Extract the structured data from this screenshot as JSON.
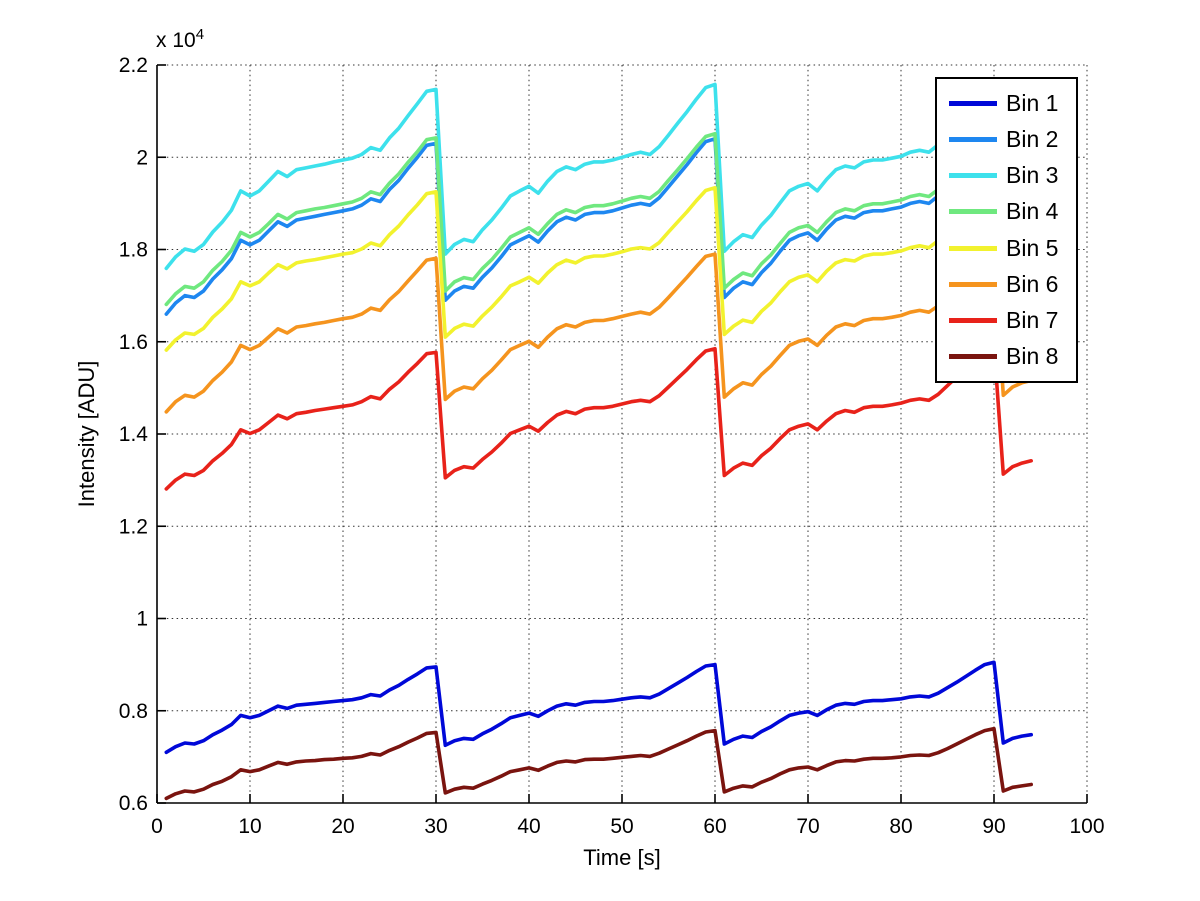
{
  "figure": {
    "background": "#ffffff",
    "exponent_label": {
      "base": "x 10",
      "exp": "4"
    }
  },
  "chart_data": {
    "type": "line",
    "title": "",
    "xlabel": "Time [s]",
    "ylabel": "Intensity [ADU]",
    "xlim": [
      0,
      100
    ],
    "ylim": [
      6000,
      22000
    ],
    "grid": true,
    "legend_position": "northeast",
    "xticks": [
      0,
      10,
      20,
      30,
      40,
      50,
      60,
      70,
      80,
      90,
      100
    ],
    "xtick_labels": [
      "0",
      "10",
      "20",
      "30",
      "40",
      "50",
      "60",
      "70",
      "80",
      "90",
      "100"
    ],
    "yticks": [
      6000,
      8000,
      10000,
      12000,
      14000,
      16000,
      18000,
      20000,
      22000
    ],
    "ytick_labels": [
      "0.6",
      "0.8",
      "1",
      "1.2",
      "1.4",
      "1.6",
      "1.8",
      "2",
      "2.2"
    ],
    "grid_color": "#333333",
    "axis_color": "#000000",
    "x": [
      1,
      2,
      3,
      4,
      5,
      6,
      7,
      8,
      9,
      10,
      11,
      12,
      13,
      14,
      15,
      16,
      17,
      18,
      19,
      20,
      21,
      22,
      23,
      24,
      25,
      26,
      27,
      28,
      29,
      30,
      31,
      32,
      33,
      34,
      35,
      36,
      37,
      38,
      39,
      40,
      41,
      42,
      43,
      44,
      45,
      46,
      47,
      48,
      49,
      50,
      51,
      52,
      53,
      54,
      55,
      56,
      57,
      58,
      59,
      60,
      61,
      62,
      63,
      64,
      65,
      66,
      67,
      68,
      69,
      70,
      71,
      72,
      73,
      74,
      75,
      76,
      77,
      78,
      79,
      80,
      81,
      82,
      83,
      84,
      85,
      86,
      87,
      88,
      89,
      90,
      91,
      92,
      93,
      94
    ],
    "series": [
      {
        "name": "Bin 1",
        "color": "#0008D8",
        "values": [
          7100,
          7220,
          7300,
          7280,
          7350,
          7480,
          7580,
          7700,
          7900,
          7850,
          7900,
          8000,
          8100,
          8050,
          8120,
          8140,
          8160,
          8180,
          8200,
          8220,
          8240,
          8280,
          8350,
          8320,
          8450,
          8550,
          8680,
          8800,
          8930,
          8950,
          7250,
          7350,
          7400,
          7380,
          7500,
          7600,
          7720,
          7850,
          7900,
          7950,
          7880,
          8000,
          8100,
          8150,
          8120,
          8180,
          8200,
          8200,
          8220,
          8250,
          8280,
          8300,
          8280,
          8360,
          8480,
          8600,
          8720,
          8850,
          8970,
          9000,
          7280,
          7380,
          7450,
          7420,
          7550,
          7650,
          7780,
          7900,
          7950,
          7980,
          7900,
          8020,
          8120,
          8160,
          8140,
          8200,
          8220,
          8220,
          8240,
          8260,
          8300,
          8320,
          8300,
          8380,
          8500,
          8620,
          8750,
          8880,
          9000,
          9050,
          7300,
          7400,
          7450,
          7480
        ]
      },
      {
        "name": "Bin 2",
        "color": "#1E87F0",
        "values": [
          16600,
          16840,
          17000,
          16960,
          17100,
          17360,
          17560,
          17800,
          18200,
          18100,
          18200,
          18400,
          18600,
          18500,
          18640,
          18680,
          18720,
          18760,
          18800,
          18840,
          18880,
          18960,
          19100,
          19040,
          19300,
          19500,
          19760,
          20000,
          20260,
          20300,
          16900,
          17100,
          17200,
          17160,
          17400,
          17600,
          17840,
          18100,
          18200,
          18300,
          18160,
          18400,
          18600,
          18700,
          18640,
          18760,
          18800,
          18800,
          18840,
          18900,
          18960,
          19000,
          18960,
          19120,
          19360,
          19600,
          19840,
          20100,
          20340,
          20400,
          16960,
          17160,
          17300,
          17240,
          17500,
          17700,
          17960,
          18200,
          18300,
          18360,
          18200,
          18440,
          18640,
          18720,
          18680,
          18800,
          18840,
          18840,
          18880,
          18920,
          19000,
          19040,
          19000,
          19160,
          19400,
          19640,
          19900,
          20160,
          20400,
          20500,
          17000,
          17200,
          17300,
          17360
        ]
      },
      {
        "name": "Bin 3",
        "color": "#3DE1EC",
        "values": [
          17590,
          17840,
          18010,
          17960,
          18110,
          18380,
          18590,
          18850,
          19270,
          19160,
          19270,
          19480,
          19690,
          19580,
          19730,
          19770,
          19810,
          19850,
          19900,
          19940,
          19980,
          20060,
          20210,
          20150,
          20420,
          20630,
          20900,
          21160,
          21430,
          21470,
          17900,
          18110,
          18220,
          18170,
          18430,
          18640,
          18890,
          19160,
          19270,
          19370,
          19220,
          19480,
          19690,
          19790,
          19730,
          19850,
          19900,
          19900,
          19940,
          20000,
          20060,
          20110,
          20060,
          20230,
          20480,
          20740,
          20990,
          21260,
          21510,
          21580,
          17960,
          18170,
          18320,
          18260,
          18530,
          18740,
          19010,
          19270,
          19370,
          19430,
          19270,
          19520,
          19730,
          19810,
          19770,
          19900,
          19940,
          19940,
          19980,
          20020,
          20110,
          20150,
          20110,
          20270,
          20530,
          20780,
          21050,
          21320,
          21580,
          21680,
          18010,
          18220,
          18320,
          18380
        ]
      },
      {
        "name": "Bin 4",
        "color": "#6FE87F",
        "values": [
          16810,
          17040,
          17200,
          17160,
          17300,
          17550,
          17740,
          17980,
          18370,
          18270,
          18370,
          18560,
          18760,
          18660,
          18800,
          18840,
          18880,
          18910,
          18950,
          18990,
          19030,
          19110,
          19250,
          19190,
          19440,
          19640,
          19890,
          20120,
          20380,
          20420,
          17100,
          17300,
          17390,
          17350,
          17590,
          17780,
          18020,
          18270,
          18370,
          18470,
          18330,
          18560,
          18760,
          18860,
          18800,
          18910,
          18950,
          18950,
          18990,
          19050,
          19110,
          19150,
          19110,
          19260,
          19500,
          19730,
          19970,
          20220,
          20450,
          20510,
          17160,
          17350,
          17490,
          17430,
          17690,
          17880,
          18130,
          18370,
          18470,
          18520,
          18370,
          18600,
          18800,
          18880,
          18840,
          18950,
          18990,
          18990,
          19030,
          19070,
          19150,
          19190,
          19150,
          19300,
          19540,
          19770,
          20030,
          20280,
          20510,
          20610,
          17200,
          17390,
          17490,
          17550
        ]
      },
      {
        "name": "Bin 5",
        "color": "#F2F22E",
        "values": [
          15820,
          16040,
          16190,
          16160,
          16290,
          16530,
          16710,
          16930,
          17300,
          17210,
          17300,
          17490,
          17670,
          17580,
          17710,
          17750,
          17780,
          17820,
          17860,
          17900,
          17930,
          18010,
          18140,
          18080,
          18320,
          18510,
          18750,
          18970,
          19210,
          19250,
          16100,
          16290,
          16380,
          16340,
          16560,
          16750,
          16970,
          17210,
          17300,
          17400,
          17270,
          17490,
          17670,
          17770,
          17710,
          17820,
          17860,
          17860,
          17900,
          17950,
          18010,
          18040,
          18010,
          18150,
          18380,
          18600,
          18820,
          19060,
          19280,
          19340,
          16160,
          16340,
          16470,
          16420,
          16660,
          16840,
          17080,
          17300,
          17400,
          17450,
          17300,
          17530,
          17710,
          17780,
          17750,
          17860,
          17900,
          17900,
          17930,
          17970,
          18040,
          18080,
          18040,
          18190,
          18410,
          18640,
          18880,
          19120,
          19340,
          19430,
          16190,
          16380,
          16470,
          16530
        ]
      },
      {
        "name": "Bin 6",
        "color": "#F5941E",
        "values": [
          14480,
          14700,
          14840,
          14800,
          14930,
          15160,
          15340,
          15560,
          15920,
          15830,
          15920,
          16100,
          16280,
          16190,
          16320,
          16350,
          16390,
          16420,
          16460,
          16500,
          16530,
          16600,
          16730,
          16680,
          16910,
          17090,
          17320,
          17540,
          17770,
          17810,
          14750,
          14930,
          15020,
          14980,
          15200,
          15380,
          15600,
          15830,
          15920,
          16010,
          15880,
          16100,
          16280,
          16370,
          16320,
          16420,
          16460,
          16460,
          16500,
          16550,
          16600,
          16640,
          16600,
          16750,
          16960,
          17180,
          17400,
          17630,
          17850,
          17900,
          14800,
          14980,
          15110,
          15060,
          15290,
          15470,
          15700,
          15920,
          16010,
          16060,
          15920,
          16140,
          16320,
          16390,
          16350,
          16460,
          16500,
          16500,
          16530,
          16570,
          16640,
          16680,
          16640,
          16780,
          17000,
          17220,
          17450,
          17680,
          17900,
          17990,
          14840,
          15020,
          15110,
          15160
        ]
      },
      {
        "name": "Bin 7",
        "color": "#E8221A",
        "values": [
          12810,
          13000,
          13130,
          13100,
          13210,
          13420,
          13580,
          13770,
          14090,
          14010,
          14090,
          14250,
          14410,
          14330,
          14440,
          14470,
          14510,
          14540,
          14570,
          14600,
          14630,
          14700,
          14810,
          14760,
          14970,
          15130,
          15340,
          15530,
          15740,
          15770,
          13050,
          13210,
          13290,
          13260,
          13450,
          13610,
          13800,
          14010,
          14090,
          14170,
          14060,
          14250,
          14410,
          14490,
          14440,
          14540,
          14570,
          14570,
          14600,
          14650,
          14700,
          14730,
          14700,
          14830,
          15020,
          15210,
          15400,
          15610,
          15800,
          15850,
          13100,
          13260,
          13370,
          13320,
          13530,
          13690,
          13900,
          14090,
          14170,
          14220,
          14090,
          14280,
          14440,
          14510,
          14470,
          14570,
          14600,
          14600,
          14630,
          14670,
          14730,
          14760,
          14730,
          14860,
          15050,
          15240,
          15450,
          15660,
          15850,
          15930,
          13130,
          13290,
          13370,
          13420
        ]
      },
      {
        "name": "Bin 8",
        "color": "#7A140F",
        "values": [
          6100,
          6200,
          6260,
          6240,
          6300,
          6400,
          6470,
          6570,
          6720,
          6680,
          6720,
          6800,
          6880,
          6840,
          6890,
          6910,
          6920,
          6940,
          6950,
          6970,
          6980,
          7010,
          7070,
          7040,
          7140,
          7220,
          7320,
          7410,
          7510,
          7530,
          6220,
          6300,
          6340,
          6320,
          6410,
          6490,
          6580,
          6680,
          6720,
          6760,
          6710,
          6800,
          6880,
          6910,
          6890,
          6940,
          6950,
          6950,
          6970,
          6990,
          7010,
          7030,
          7010,
          7080,
          7170,
          7260,
          7350,
          7450,
          7540,
          7570,
          6240,
          6320,
          6370,
          6350,
          6450,
          6530,
          6630,
          6720,
          6760,
          6780,
          6720,
          6810,
          6890,
          6920,
          6910,
          6950,
          6970,
          6970,
          6980,
          7000,
          7030,
          7040,
          7030,
          7090,
          7180,
          7280,
          7380,
          7480,
          7570,
          7610,
          6260,
          6340,
          6370,
          6400
        ]
      }
    ]
  }
}
